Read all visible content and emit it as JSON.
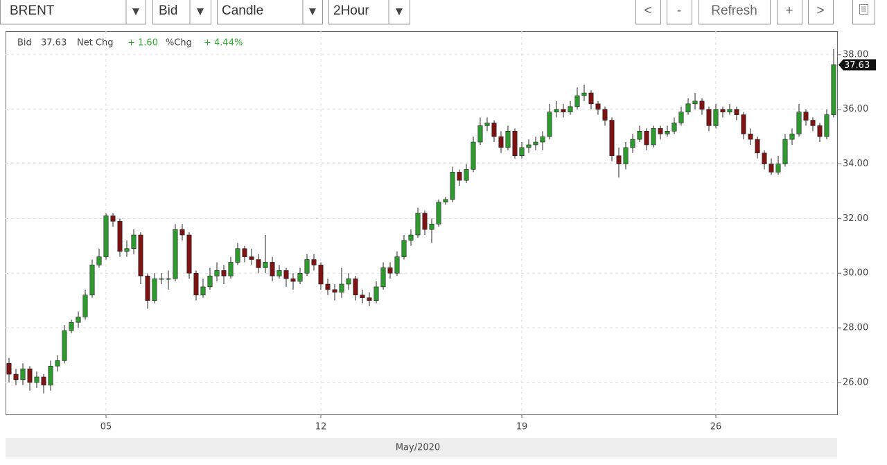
{
  "controls": {
    "symbol": "BRENT",
    "side": "Bid",
    "style": "Candle",
    "interval": "2Hour",
    "buttons": [
      "<",
      "-",
      "Refresh",
      "+",
      ">"
    ]
  },
  "chart_data": {
    "type": "candlestick",
    "header": {
      "bid_label": "Bid",
      "net_label": "Net Chg",
      "net_change": "+ 1.60",
      "pct_label": "%Chg",
      "pct_change": "+ 4.44%"
    },
    "xlabel": "May/2020",
    "categories": [
      null,
      null,
      null,
      null,
      null,
      null,
      null,
      null,
      null,
      null,
      null,
      null,
      null,
      null,
      "05",
      null,
      null,
      null,
      null,
      null,
      null,
      null,
      null,
      null,
      null,
      null,
      null,
      null,
      null,
      null,
      null,
      null,
      null,
      null,
      null,
      null,
      null,
      null,
      null,
      null,
      null,
      null,
      null,
      null,
      null,
      "12",
      null,
      null,
      null,
      null,
      null,
      null,
      null,
      null,
      null,
      null,
      null,
      null,
      null,
      null,
      null,
      null,
      null,
      null,
      null,
      null,
      null,
      null,
      null,
      null,
      null,
      null,
      null,
      null,
      "19",
      null,
      null,
      null,
      null,
      null,
      null,
      null,
      null,
      null,
      null,
      null,
      null,
      null,
      null,
      null,
      null,
      null,
      null,
      null,
      null,
      null,
      null,
      null,
      null,
      null,
      null,
      null,
      "26",
      null,
      null,
      null,
      null,
      null,
      null,
      null,
      null,
      null,
      null,
      null,
      null,
      null,
      null,
      null,
      null,
      null
    ],
    "open": [
      26.7,
      26.3,
      26.1,
      26.5,
      26.0,
      26.2,
      25.9,
      26.6,
      26.8,
      27.9,
      28.2,
      28.4,
      29.2,
      30.3,
      30.6,
      32.1,
      31.9,
      30.8,
      30.9,
      31.4,
      29.9,
      29.0,
      29.8,
      29.8,
      29.8,
      31.6,
      31.4,
      30.0,
      29.2,
      29.5,
      29.9,
      30.1,
      29.9,
      30.4,
      30.9,
      30.6,
      30.5,
      30.2,
      30.4,
      29.9,
      30.1,
      29.8,
      29.7,
      30.0,
      30.5,
      30.3,
      29.6,
      29.4,
      29.3,
      29.6,
      29.8,
      29.2,
      29.1,
      29.0,
      29.5,
      30.2,
      30.0,
      30.6,
      31.2,
      31.4,
      32.2,
      31.6,
      31.8,
      32.6,
      32.7,
      33.7,
      33.4,
      33.8,
      34.8,
      35.4,
      35.5,
      35.0,
      34.6,
      35.2,
      34.3,
      34.6,
      34.7,
      34.8,
      35.0,
      35.9,
      36.0,
      35.9,
      36.1,
      36.5,
      36.6,
      36.2,
      36.0,
      35.6,
      34.3,
      34.0,
      34.6,
      34.9,
      35.2,
      34.7,
      35.3,
      35.1,
      35.2,
      35.5,
      35.9,
      36.2,
      36.3,
      36.0,
      35.4,
      36.0,
      35.9,
      36.0,
      35.8,
      35.1,
      34.9,
      34.4,
      34.0,
      33.7,
      34.0,
      34.9,
      35.1,
      35.9,
      35.6,
      35.4,
      35.0,
      35.8
    ],
    "high": [
      26.9,
      26.5,
      26.7,
      26.6,
      26.4,
      26.3,
      26.8,
      27.0,
      28.1,
      28.3,
      28.6,
      29.4,
      30.5,
      30.9,
      32.2,
      32.2,
      32.0,
      31.2,
      31.6,
      31.5,
      30.0,
      30.0,
      30.0,
      30.1,
      31.8,
      31.8,
      31.5,
      30.1,
      29.8,
      30.2,
      30.4,
      30.3,
      30.6,
      31.1,
      31.0,
      30.9,
      30.7,
      31.4,
      30.6,
      30.3,
      30.2,
      30.0,
      30.2,
      30.7,
      30.7,
      30.4,
      29.8,
      29.6,
      30.2,
      30.0,
      29.9,
      29.4,
      29.3,
      29.7,
      30.4,
      30.4,
      30.8,
      31.4,
      31.6,
      32.4,
      32.3,
      32.0,
      32.7,
      32.8,
      33.9,
      33.8,
      34.0,
      35.0,
      35.7,
      35.7,
      35.6,
      35.2,
      35.4,
      35.3,
      34.8,
      34.9,
      35.0,
      35.2,
      36.2,
      36.3,
      36.2,
      36.3,
      36.8,
      36.9,
      36.7,
      36.3,
      36.1,
      35.7,
      34.6,
      34.8,
      35.1,
      35.4,
      35.3,
      35.4,
      35.4,
      35.4,
      35.7,
      36.1,
      36.4,
      36.6,
      36.4,
      36.1,
      36.2,
      36.1,
      36.2,
      36.1,
      35.9,
      35.3,
      35.0,
      34.5,
      34.2,
      34.3,
      35.1,
      35.3,
      36.2,
      36.0,
      35.7,
      35.5,
      36.0,
      38.2
    ],
    "low": [
      26.0,
      25.9,
      25.9,
      25.7,
      25.8,
      25.6,
      25.7,
      26.4,
      26.7,
      27.8,
      28.0,
      28.3,
      29.1,
      30.2,
      30.5,
      31.7,
      30.6,
      30.6,
      30.7,
      29.6,
      28.7,
      28.9,
      29.6,
      29.4,
      29.7,
      31.2,
      29.8,
      29.0,
      29.1,
      29.4,
      29.7,
      29.6,
      29.8,
      30.3,
      30.4,
      30.3,
      30.0,
      30.0,
      29.7,
      29.8,
      29.5,
      29.4,
      29.6,
      29.9,
      30.1,
      29.4,
      29.2,
      29.0,
      29.1,
      29.4,
      29.0,
      28.9,
      28.8,
      28.9,
      29.4,
      29.8,
      29.9,
      30.5,
      31.0,
      31.3,
      31.4,
      31.1,
      31.7,
      32.5,
      32.6,
      33.2,
      33.3,
      33.7,
      34.7,
      35.2,
      34.8,
      34.4,
      34.5,
      34.2,
      34.2,
      34.4,
      34.5,
      34.5,
      34.9,
      35.7,
      35.7,
      35.8,
      36.0,
      36.3,
      36.0,
      35.8,
      35.4,
      34.1,
      33.5,
      33.8,
      34.4,
      34.8,
      34.5,
      34.6,
      34.9,
      35.0,
      35.1,
      35.4,
      35.8,
      36.0,
      35.8,
      35.2,
      35.3,
      35.7,
      35.8,
      35.6,
      34.9,
      34.7,
      34.2,
      33.8,
      33.6,
      33.6,
      33.9,
      34.7,
      35.0,
      35.4,
      35.2,
      34.8,
      34.9,
      35.7
    ],
    "close": [
      26.3,
      26.1,
      26.5,
      26.0,
      26.2,
      25.9,
      26.6,
      26.8,
      27.9,
      28.2,
      28.4,
      29.2,
      30.3,
      30.6,
      32.1,
      31.9,
      30.8,
      30.9,
      31.4,
      29.9,
      29.0,
      29.8,
      29.8,
      29.8,
      31.6,
      31.4,
      30.0,
      29.2,
      29.5,
      29.9,
      30.1,
      29.9,
      30.4,
      30.9,
      30.6,
      30.5,
      30.2,
      30.4,
      29.9,
      30.1,
      29.8,
      29.7,
      30.0,
      30.5,
      30.3,
      29.6,
      29.4,
      29.3,
      29.6,
      29.8,
      29.2,
      29.1,
      29.0,
      29.5,
      30.2,
      30.0,
      30.6,
      31.2,
      31.4,
      32.2,
      31.6,
      31.8,
      32.6,
      32.7,
      33.7,
      33.4,
      33.8,
      34.8,
      35.4,
      35.5,
      35.0,
      34.6,
      35.2,
      34.3,
      34.6,
      34.7,
      34.8,
      35.0,
      35.9,
      36.0,
      35.9,
      36.1,
      36.5,
      36.6,
      36.2,
      36.0,
      35.6,
      34.3,
      34.0,
      34.6,
      34.9,
      35.2,
      34.7,
      35.3,
      35.1,
      35.2,
      35.5,
      35.9,
      36.2,
      36.3,
      36.0,
      35.4,
      36.0,
      35.9,
      36.0,
      35.8,
      35.1,
      34.9,
      34.4,
      34.0,
      33.7,
      34.0,
      34.9,
      35.1,
      35.9,
      35.6,
      35.4,
      35.0,
      35.8,
      37.63
    ],
    "up_color": "#2f9a2f",
    "down_color": "#7d1414",
    "ylim": [
      24.83,
      38.86
    ],
    "yticks": [
      {
        "value": 26,
        "label": "26.00"
      },
      {
        "value": 28,
        "label": "28.00"
      },
      {
        "value": 30,
        "label": "30.00"
      },
      {
        "value": 32,
        "label": "32.00"
      },
      {
        "value": 34,
        "label": "34.00"
      },
      {
        "value": 36,
        "label": "36.00"
      },
      {
        "value": 38,
        "label": "38.00"
      }
    ],
    "grid": true
  }
}
